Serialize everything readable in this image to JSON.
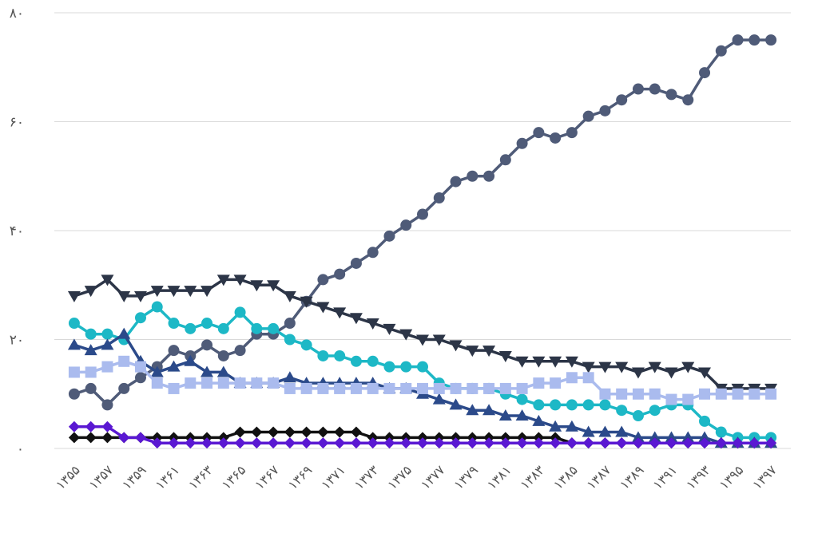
{
  "chart_data": {
    "type": "line",
    "title": "",
    "xlabel": "",
    "ylabel": "",
    "ylim": [
      0,
      80
    ],
    "y_ticks": [
      {
        "value": 0,
        "label": "۰"
      },
      {
        "value": 20,
        "label": "۲۰"
      },
      {
        "value": 40,
        "label": "۴۰"
      },
      {
        "value": 60,
        "label": "۶۰"
      },
      {
        "value": 80,
        "label": "۸۰"
      }
    ],
    "x": [
      1355,
      1356,
      1357,
      1358,
      1359,
      1360,
      1361,
      1362,
      1363,
      1364,
      1365,
      1366,
      1367,
      1368,
      1369,
      1370,
      1371,
      1372,
      1373,
      1374,
      1375,
      1376,
      1377,
      1378,
      1379,
      1380,
      1381,
      1382,
      1383,
      1384,
      1385,
      1386,
      1387,
      1388,
      1389,
      1390,
      1391,
      1392,
      1393,
      1394,
      1395,
      1396,
      1397
    ],
    "x_tick_labels": [
      "۱۳۵۵",
      "۱۳۵۷",
      "۱۳۵۹",
      "۱۳۶۱",
      "۱۳۶۳",
      "۱۳۶۵",
      "۱۳۶۷",
      "۱۳۶۹",
      "۱۳۷۱",
      "۱۳۷۳",
      "۱۳۷۵",
      "۱۳۷۷",
      "۱۳۷۹",
      "۱۳۸۱",
      "۱۳۸۳",
      "۱۳۸۵",
      "۱۳۸۷",
      "۱۳۸۹",
      "۱۳۹۱",
      "۱۳۹۳",
      "۱۳۹۵",
      "۱۳۹۷"
    ],
    "series": [
      {
        "name": "series-circle-slate",
        "color": "#4f5b78",
        "marker": "circle",
        "values": [
          10,
          11,
          8,
          11,
          13,
          15,
          18,
          17,
          19,
          17,
          18,
          21,
          21,
          23,
          27,
          31,
          32,
          34,
          36,
          39,
          41,
          43,
          46,
          49,
          50,
          50,
          53,
          56,
          58,
          57,
          58,
          61,
          62,
          64,
          66,
          66,
          65,
          64,
          69,
          73,
          75,
          75,
          75
        ]
      },
      {
        "name": "series-triangle-down-dark",
        "color": "#2c3547",
        "marker": "triangle-down",
        "values": [
          28,
          29,
          31,
          28,
          28,
          29,
          29,
          29,
          29,
          31,
          31,
          30,
          30,
          28,
          27,
          26,
          25,
          24,
          23,
          22,
          21,
          20,
          20,
          19,
          18,
          18,
          17,
          16,
          16,
          16,
          16,
          15,
          15,
          15,
          14,
          15,
          14,
          15,
          14,
          11,
          11,
          11,
          11
        ]
      },
      {
        "name": "series-circle-teal",
        "color": "#1db8c6",
        "marker": "circle",
        "values": [
          23,
          21,
          21,
          20,
          24,
          26,
          23,
          22,
          23,
          22,
          25,
          22,
          22,
          20,
          19,
          17,
          17,
          16,
          16,
          15,
          15,
          15,
          12,
          11,
          11,
          11,
          10,
          9,
          8,
          8,
          8,
          8,
          8,
          7,
          6,
          7,
          8,
          8,
          5,
          3,
          2,
          2,
          2
        ]
      },
      {
        "name": "series-triangle-up-navy",
        "color": "#2b4a8a",
        "marker": "triangle-up",
        "values": [
          19,
          18,
          19,
          21,
          16,
          14,
          15,
          16,
          14,
          14,
          12,
          12,
          12,
          13,
          12,
          12,
          12,
          12,
          12,
          11,
          11,
          10,
          9,
          8,
          7,
          7,
          6,
          6,
          5,
          4,
          4,
          3,
          3,
          3,
          2,
          2,
          2,
          2,
          2,
          1,
          1,
          1,
          1
        ]
      },
      {
        "name": "series-square-lavender",
        "color": "#aabbee",
        "marker": "square",
        "values": [
          14,
          14,
          15,
          16,
          15,
          12,
          11,
          12,
          12,
          12,
          12,
          12,
          12,
          11,
          11,
          11,
          11,
          11,
          11,
          11,
          11,
          11,
          11,
          11,
          11,
          11,
          11,
          11,
          12,
          12,
          13,
          13,
          10,
          10,
          10,
          10,
          9,
          9,
          10,
          10,
          10,
          10,
          10
        ]
      },
      {
        "name": "series-diamond-black",
        "color": "#111111",
        "marker": "diamond",
        "values": [
          2,
          2,
          2,
          2,
          2,
          2,
          2,
          2,
          2,
          2,
          3,
          3,
          3,
          3,
          3,
          3,
          3,
          3,
          2,
          2,
          2,
          2,
          2,
          2,
          2,
          2,
          2,
          2,
          2,
          2,
          1,
          1,
          1,
          1,
          1,
          1,
          1,
          1,
          1,
          1,
          1,
          1,
          1
        ]
      },
      {
        "name": "series-diamond-purple",
        "color": "#5a18d2",
        "marker": "diamond",
        "values": [
          4,
          4,
          4,
          2,
          2,
          1,
          1,
          1,
          1,
          1,
          1,
          1,
          1,
          1,
          1,
          1,
          1,
          1,
          1,
          1,
          1,
          1,
          1,
          1,
          1,
          1,
          1,
          1,
          1,
          1,
          1,
          1,
          1,
          1,
          1,
          1,
          1,
          1,
          1,
          1,
          1,
          1,
          1
        ]
      }
    ]
  }
}
